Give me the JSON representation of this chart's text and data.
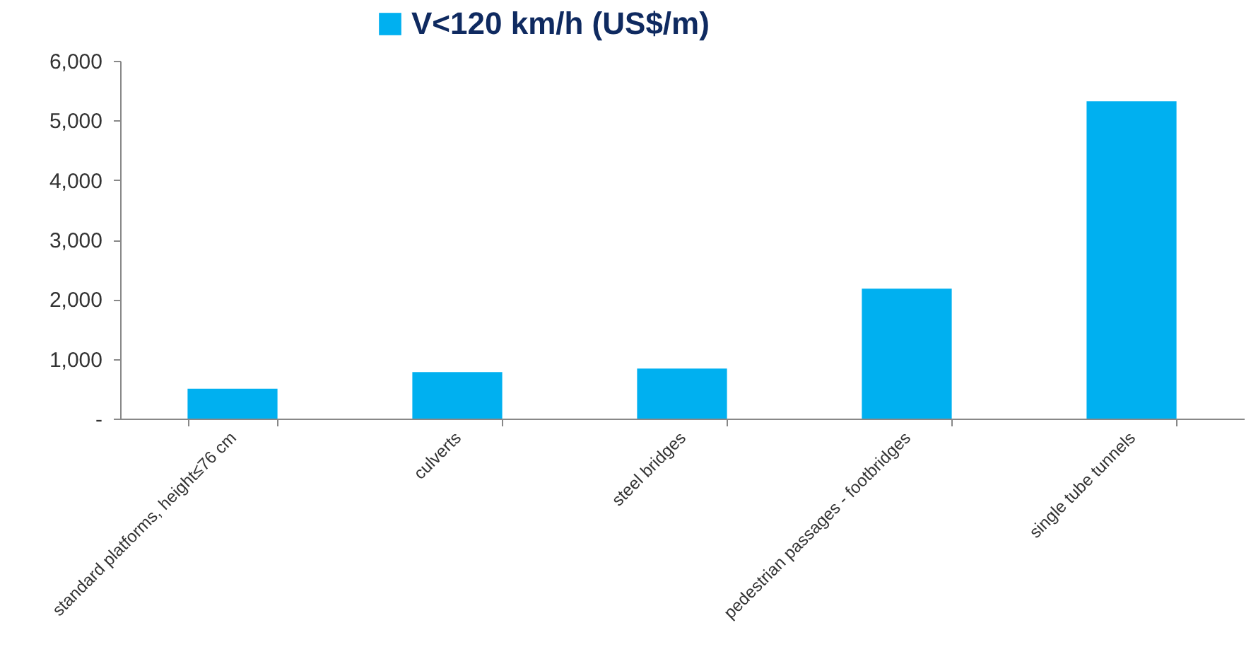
{
  "chart_data": {
    "type": "bar",
    "categories": [
      "standard platforms, height≤76 cm",
      "culverts",
      "steel bridges",
      "pedestrian passages - footbridges",
      "single tube tunnels"
    ],
    "series": [
      {
        "name": "V<120 km/h (US$/m)",
        "color": "#00b0f0",
        "values": [
          500,
          780,
          840,
          2180,
          5320
        ]
      }
    ],
    "ylim": [
      0,
      6000
    ],
    "yticks": [
      {
        "value": 0,
        "label": "-"
      },
      {
        "value": 1000,
        "label": "1,000"
      },
      {
        "value": 2000,
        "label": "2,000"
      },
      {
        "value": 3000,
        "label": "3,000"
      },
      {
        "value": 4000,
        "label": "4,000"
      },
      {
        "value": 5000,
        "label": "5,000"
      },
      {
        "value": 6000,
        "label": "6,000"
      }
    ],
    "grid": false,
    "legend": "top"
  }
}
